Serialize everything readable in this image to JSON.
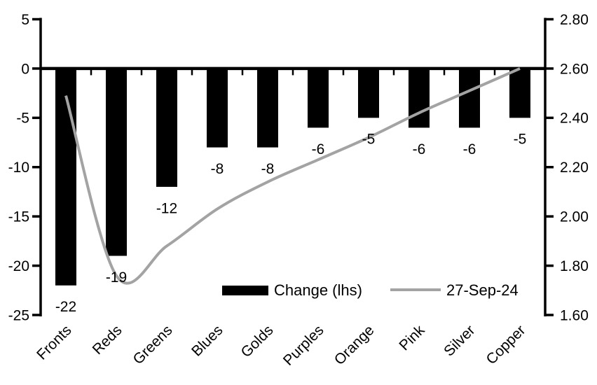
{
  "chart_data": {
    "type": "combo",
    "title": "",
    "categories": [
      "Fronts",
      "Reds",
      "Greens",
      "Blues",
      "Golds",
      "Purples",
      "Orange",
      "Pink",
      "Silver",
      "Copper"
    ],
    "series": [
      {
        "name": "Change (lhs)",
        "chart_type": "bar",
        "axis": "left",
        "color": "#000000",
        "values": [
          -22,
          -19,
          -12,
          -8,
          -8,
          -6,
          -5,
          -6,
          -6,
          -5
        ],
        "data_labels": [
          "-22",
          "-19",
          "-12",
          "-8",
          "-8",
          "-6",
          "-5",
          "-6",
          "-6",
          "-5"
        ]
      },
      {
        "name": "27-Sep-24",
        "chart_type": "line",
        "axis": "right",
        "color": "#a3a3a3",
        "values": [
          2.49,
          1.76,
          1.88,
          2.03,
          2.14,
          2.23,
          2.32,
          2.42,
          2.51,
          2.6
        ]
      }
    ],
    "left_axis": {
      "min": -25,
      "max": 5,
      "step": 5,
      "tick_labels": [
        "5",
        "0",
        "-5",
        "-10",
        "-15",
        "-20",
        "-25"
      ]
    },
    "right_axis": {
      "min": 1.6,
      "max": 2.8,
      "step": 0.2,
      "tick_labels": [
        "2.80",
        "2.60",
        "2.40",
        "2.20",
        "2.00",
        "1.80",
        "1.60"
      ]
    },
    "legend": {
      "position": "bottom-center-inside",
      "entries": [
        {
          "label": "Change (lhs)",
          "swatch": "bar"
        },
        {
          "label": "27-Sep-24",
          "swatch": "line"
        }
      ]
    },
    "grid": false,
    "axis_color": "#000000",
    "background": "#ffffff"
  }
}
